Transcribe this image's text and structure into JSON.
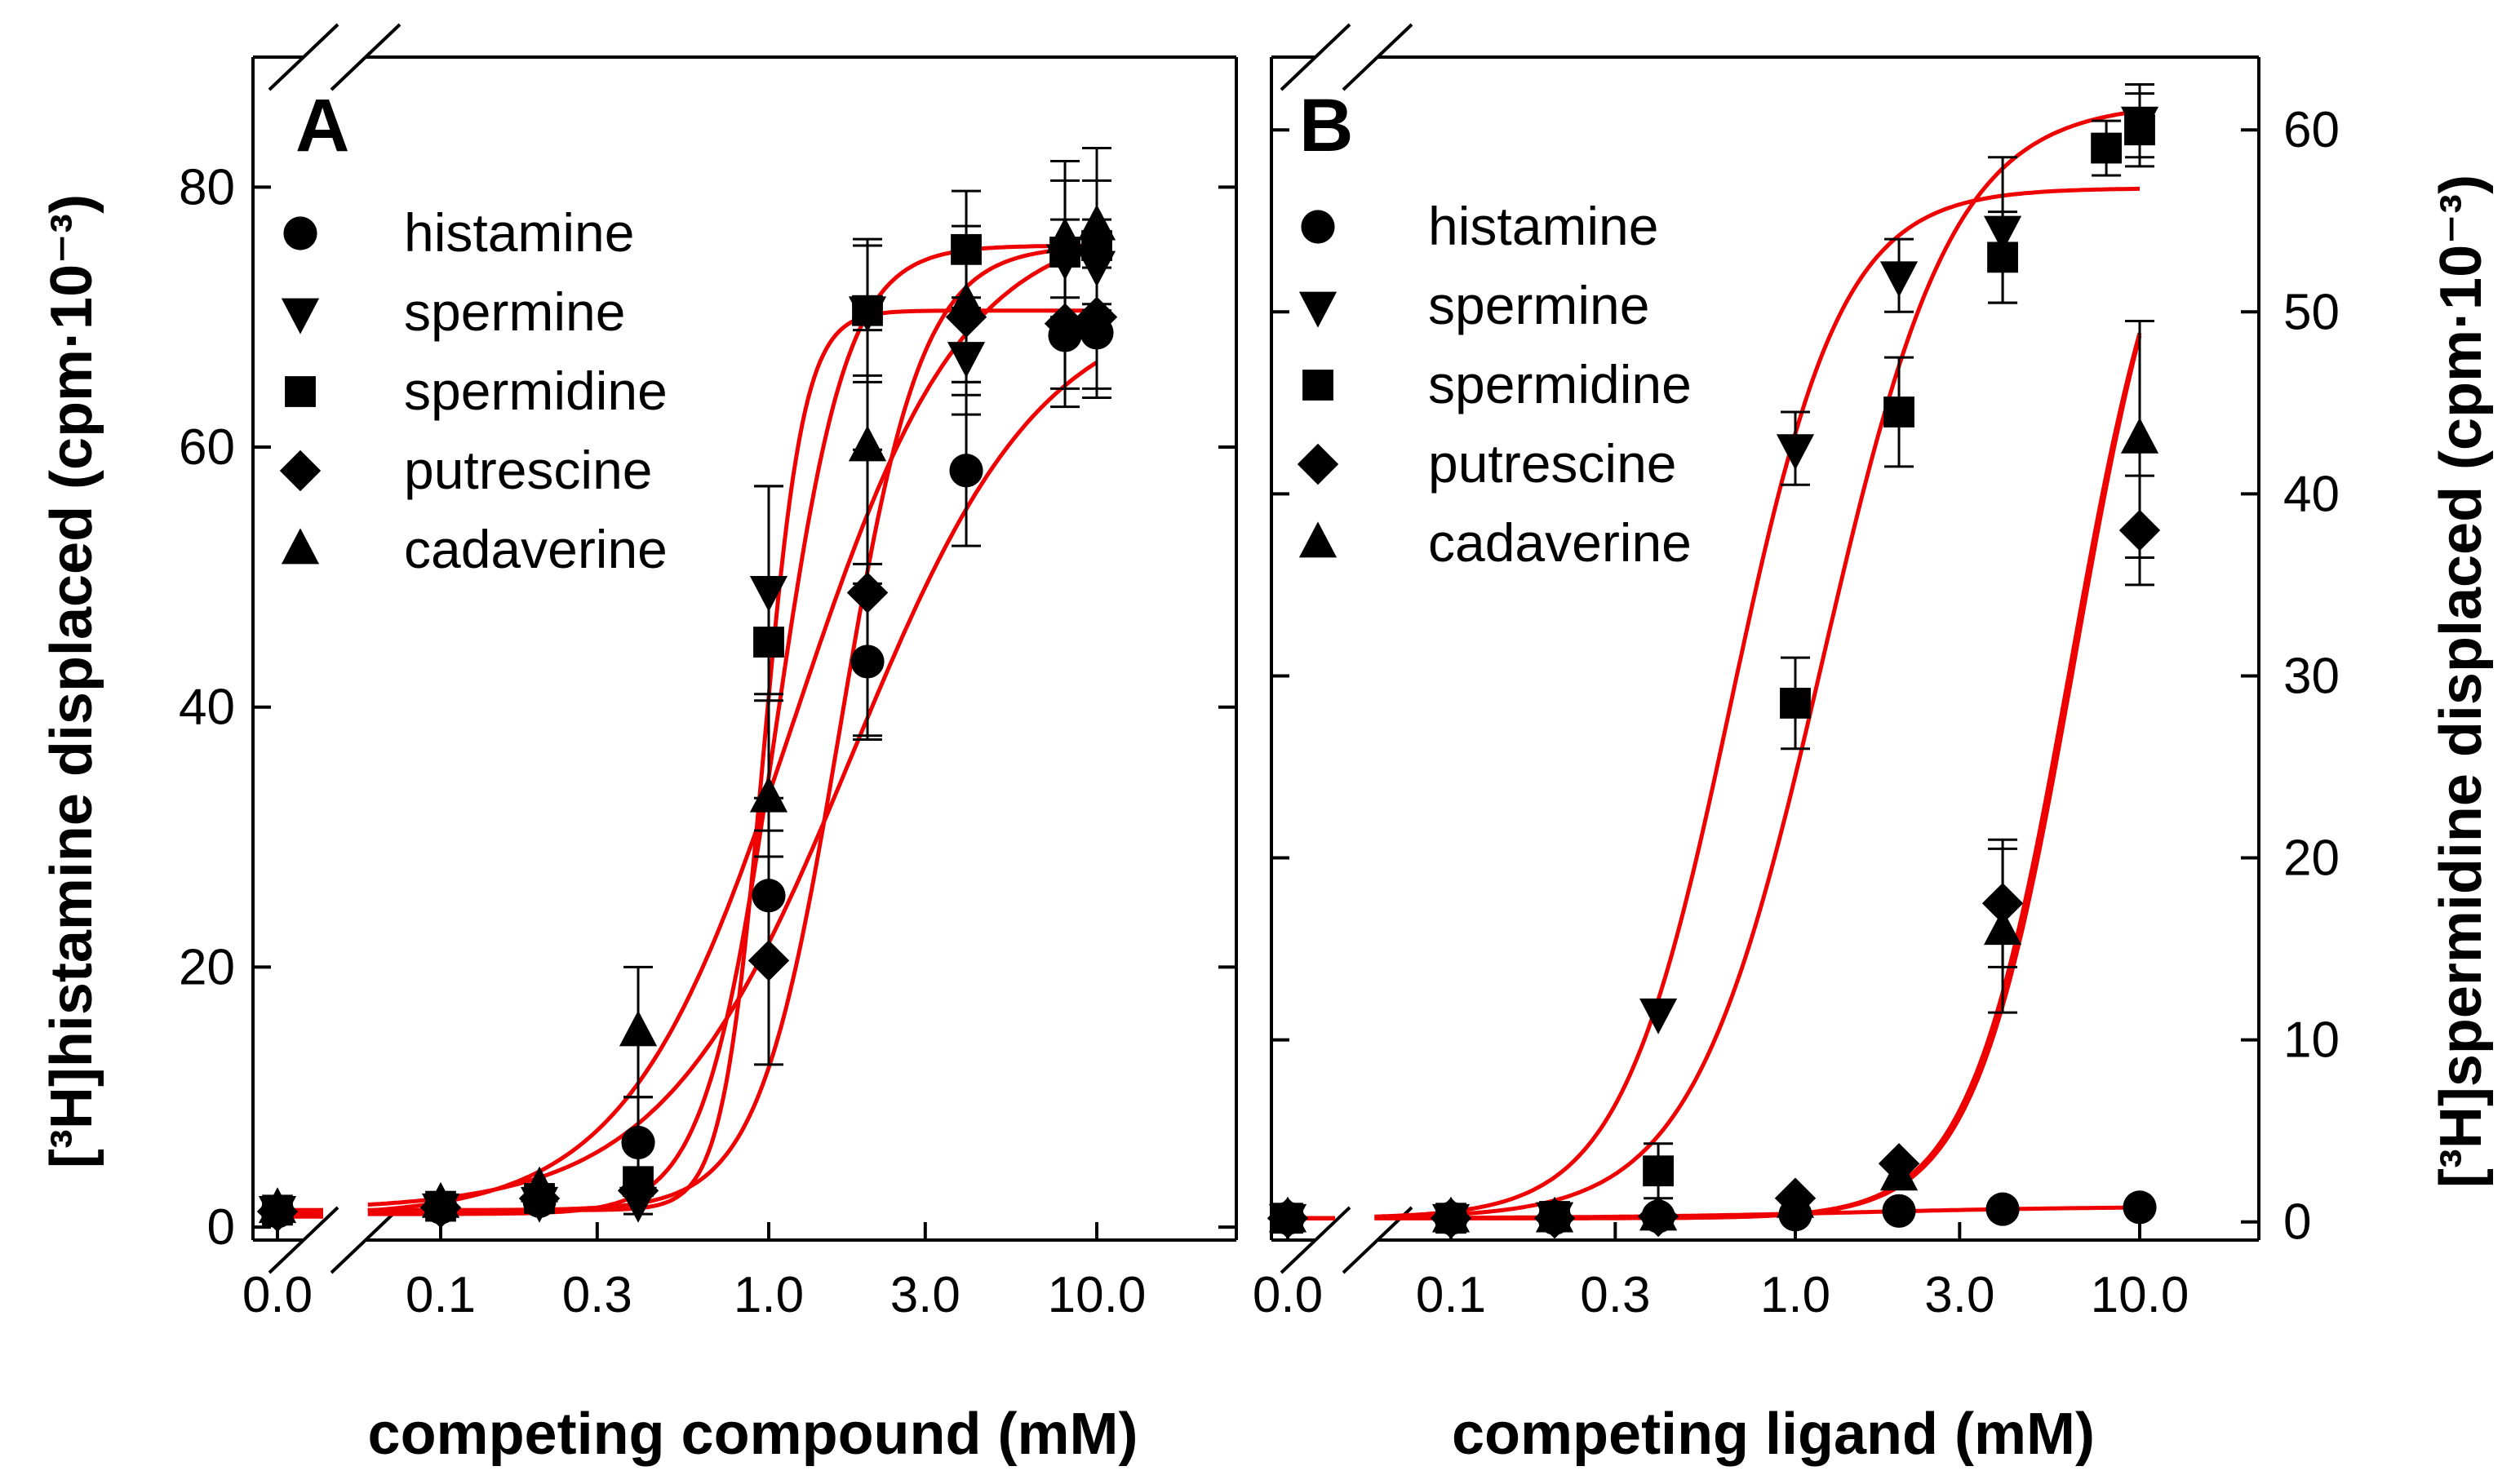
{
  "figure": {
    "panels": [
      {
        "letter": "A",
        "y_title": "[³H]histamine displaced (cpm·10⁻³)",
        "x_title": "competing compound (mM)"
      },
      {
        "letter": "B",
        "y_title": "[³H]spermidine displaced (cpm·10⁻³)",
        "x_title": "competing ligand (mM)"
      }
    ]
  },
  "chart_data": [
    {
      "type": "scatter",
      "panel": "A",
      "title": "A",
      "xlabel": "competing compound (mM)",
      "ylabel": "[3H]histamine displaced (cpm·10-3)",
      "xscale": "log with axis break (0.0 plotted before break)",
      "x_tick_labels": [
        "0.0",
        "0.1",
        "0.3",
        "1.0",
        "3.0",
        "10.0"
      ],
      "x_tick_values": [
        0,
        0.1,
        0.3,
        1.0,
        3.0,
        10.0
      ],
      "y_ticks": [
        0,
        20,
        40,
        60,
        80
      ],
      "y_tick_labels": [
        "0",
        "20",
        "40",
        "60",
        "80"
      ],
      "ylim": [
        -1,
        90
      ],
      "legend": [
        "histamine",
        "spermine",
        "spermidine",
        "putrescine",
        "cadaverine"
      ],
      "legend_position": "top-left",
      "x": [
        0,
        0.1,
        0.2,
        0.4,
        1.0,
        2.0,
        4.0,
        8.0,
        10.0
      ],
      "series": [
        {
          "name": "histamine",
          "marker": "circle",
          "values": [
            1.2,
            1.5,
            2.0,
            6.5,
            25.5,
            43.5,
            58.2,
            68.6,
            68.8
          ],
          "err": [
            0,
            0,
            0,
            3.5,
            5.0,
            6.0,
            5.8,
            5.5,
            5.0
          ]
        },
        {
          "name": "spermine",
          "marker": "triangle-down",
          "values": [
            1.3,
            1.5,
            2.0,
            2.0,
            49.0,
            70.5,
            67.0,
            74.5,
            74.0
          ],
          "err": [
            0,
            0,
            0,
            0,
            8.0,
            5.5,
            4.5,
            3.0,
            3.5
          ]
        },
        {
          "name": "spermidine",
          "marker": "square",
          "values": [
            1.3,
            1.6,
            2.2,
            3.5,
            45.0,
            70.5,
            75.2,
            75.0,
            75.5
          ],
          "err": [
            0,
            0,
            0,
            2.5,
            12.0,
            5.0,
            4.5,
            5.5,
            5.0
          ]
        },
        {
          "name": "putrescine",
          "marker": "diamond",
          "values": [
            1.2,
            1.5,
            2.2,
            2.8,
            20.5,
            48.8,
            70.0,
            69.5,
            70.0
          ],
          "err": [
            0,
            0,
            0,
            0,
            8.0,
            11.0,
            5.0,
            5.0,
            5.5
          ]
        },
        {
          "name": "cadaverine",
          "marker": "triangle-up",
          "values": [
            1.4,
            1.8,
            3.0,
            15.0,
            33.0,
            60.0,
            71.0,
            76.0,
            77.0
          ],
          "err": [
            0,
            0,
            0,
            5.0,
            7.5,
            9.0,
            6.0,
            6.0,
            6.0
          ]
        }
      ],
      "fits": [
        {
          "name": "histamine",
          "bottom": 1.3,
          "top": 71.5,
          "ec50": 1.8,
          "hill": 1.5
        },
        {
          "name": "spermine",
          "bottom": 1.3,
          "top": 70.5,
          "ec50": 0.96,
          "hill": 7.0
        },
        {
          "name": "spermidine",
          "bottom": 1.0,
          "top": 75.5,
          "ec50": 1.05,
          "hill": 4.0
        },
        {
          "name": "putrescine",
          "bottom": 1.3,
          "top": 75.5,
          "ec50": 1.65,
          "hill": 3.5
        },
        {
          "name": "cadaverine",
          "bottom": 0.8,
          "top": 77.5,
          "ec50": 1.2,
          "hill": 1.7
        }
      ]
    },
    {
      "type": "scatter",
      "panel": "B",
      "title": "B",
      "xlabel": "competing ligand (mM)",
      "ylabel": "[3H]spermidine displaced (cpm·10-3)",
      "xscale": "log with axis break (0.0 plotted before break)",
      "x_tick_labels": [
        "0.0",
        "0.1",
        "0.3",
        "1.0",
        "3.0",
        "10.0"
      ],
      "x_tick_values": [
        0,
        0.1,
        0.3,
        1.0,
        3.0,
        10.0
      ],
      "y_ticks": [
        0,
        10,
        20,
        30,
        40,
        50,
        60
      ],
      "y_tick_labels": [
        "0",
        "10",
        "20",
        "30",
        "40",
        "50",
        "60"
      ],
      "y_axis_side": "right",
      "ylim": [
        -1,
        64
      ],
      "legend": [
        "histamine",
        "spermine",
        "spermidine",
        "putrescine",
        "cadaverine"
      ],
      "legend_position": "top-left",
      "x": [
        0,
        0.1,
        0.2,
        0.4,
        1.0,
        2.0,
        4.0,
        8.0,
        10.0
      ],
      "series": [
        {
          "name": "histamine",
          "marker": "circle",
          "values": [
            0.2,
            0.2,
            0.2,
            0.3,
            0.4,
            0.6,
            0.7,
            null,
            0.8
          ],
          "err": [
            0,
            0,
            0,
            0,
            0,
            0,
            0,
            0,
            0
          ]
        },
        {
          "name": "spermine",
          "marker": "triangle-down",
          "values": [
            0.2,
            0.2,
            0.3,
            11.5,
            42.5,
            52.0,
            54.5,
            null,
            60.5
          ],
          "err": [
            0,
            0,
            0,
            0,
            2.0,
            2.0,
            4.0,
            0,
            2.0
          ]
        },
        {
          "name": "spermidine",
          "marker": "square",
          "values": [
            0.2,
            0.2,
            0.3,
            2.8,
            28.5,
            44.5,
            53.0,
            59.0,
            60.0
          ],
          "err": [
            0,
            0,
            0,
            1.5,
            2.5,
            3.0,
            2.5,
            1.5,
            2.0
          ]
        },
        {
          "name": "putrescine",
          "marker": "diamond",
          "values": [
            0.2,
            0.2,
            0.2,
            0.3,
            1.3,
            3.2,
            17.5,
            null,
            38.0
          ],
          "err": [
            0,
            0,
            0,
            0,
            0,
            0,
            3.5,
            0,
            3.0
          ]
        },
        {
          "name": "cadaverine",
          "marker": "triangle-up",
          "values": [
            0.2,
            0.2,
            0.2,
            0.3,
            1.0,
            2.5,
            16.0,
            null,
            43.0
          ],
          "err": [
            0,
            0,
            0,
            0,
            0,
            0,
            4.5,
            0,
            6.5
          ]
        }
      ],
      "fits": [
        {
          "name": "histamine",
          "bottom": 0.2,
          "top": 0.85,
          "ec50": 1.5,
          "hill": 1.2
        },
        {
          "name": "spermine",
          "bottom": 0.2,
          "top": 56.8,
          "ec50": 0.65,
          "hill": 2.7
        },
        {
          "name": "spermidine",
          "bottom": 0.2,
          "top": 61.5,
          "ec50": 1.2,
          "hill": 2.3
        },
        {
          "name": "putrescine",
          "bottom": 0.2,
          "top": 62.0,
          "ec50": 6.5,
          "hill": 3.0
        },
        {
          "name": "cadaverine",
          "bottom": 0.2,
          "top": 61.0,
          "ec50": 6.3,
          "hill": 3.0
        }
      ]
    }
  ]
}
